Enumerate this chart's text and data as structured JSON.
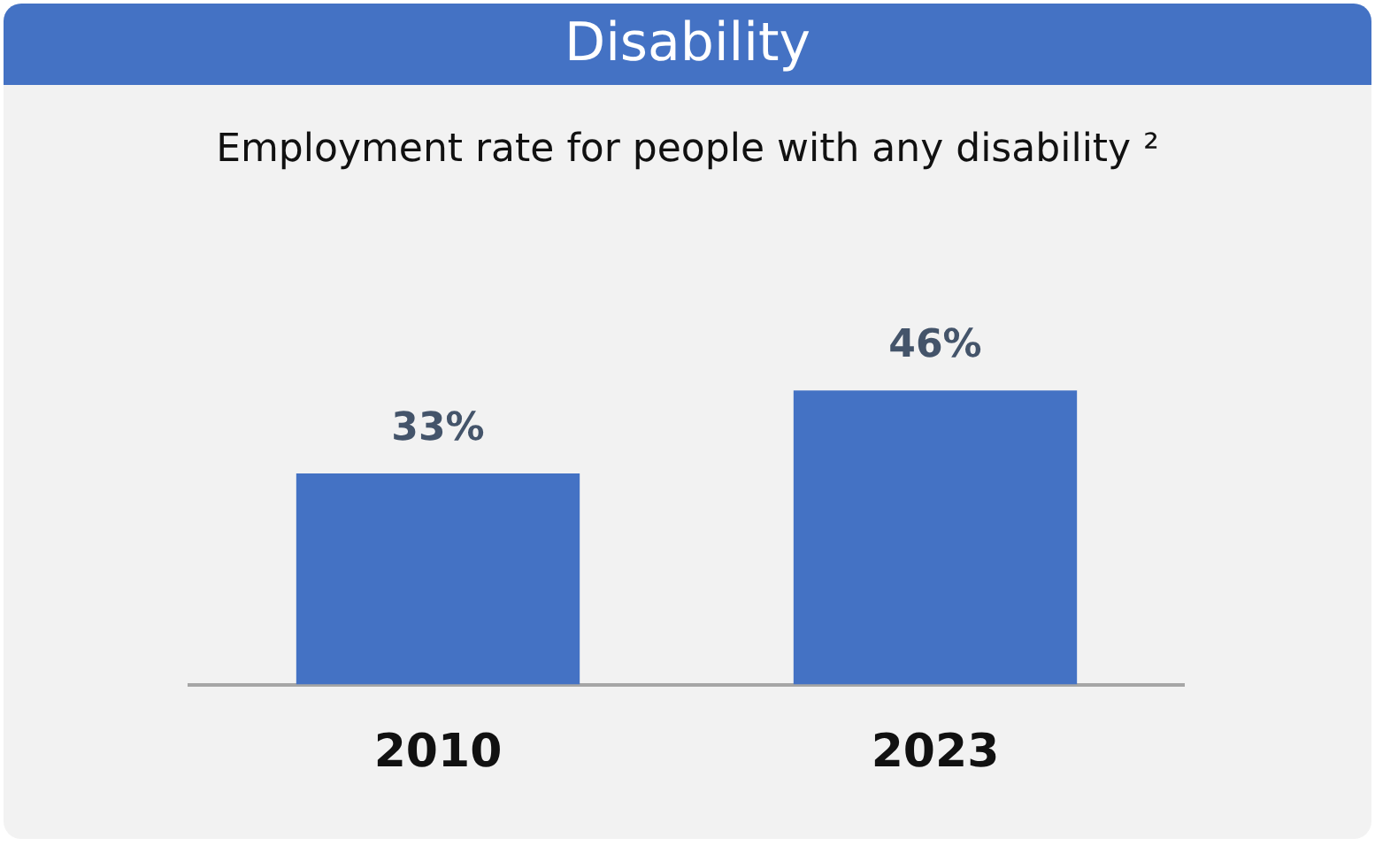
{
  "chart_data": {
    "type": "bar",
    "title": "Disability",
    "subtitle": "Employment rate for people with any disability ²",
    "categories": [
      "2010",
      "2023"
    ],
    "values": [
      33,
      46
    ],
    "color": "#4472c4",
    "value_labels": [
      "33%",
      "46%"
    ]
  }
}
